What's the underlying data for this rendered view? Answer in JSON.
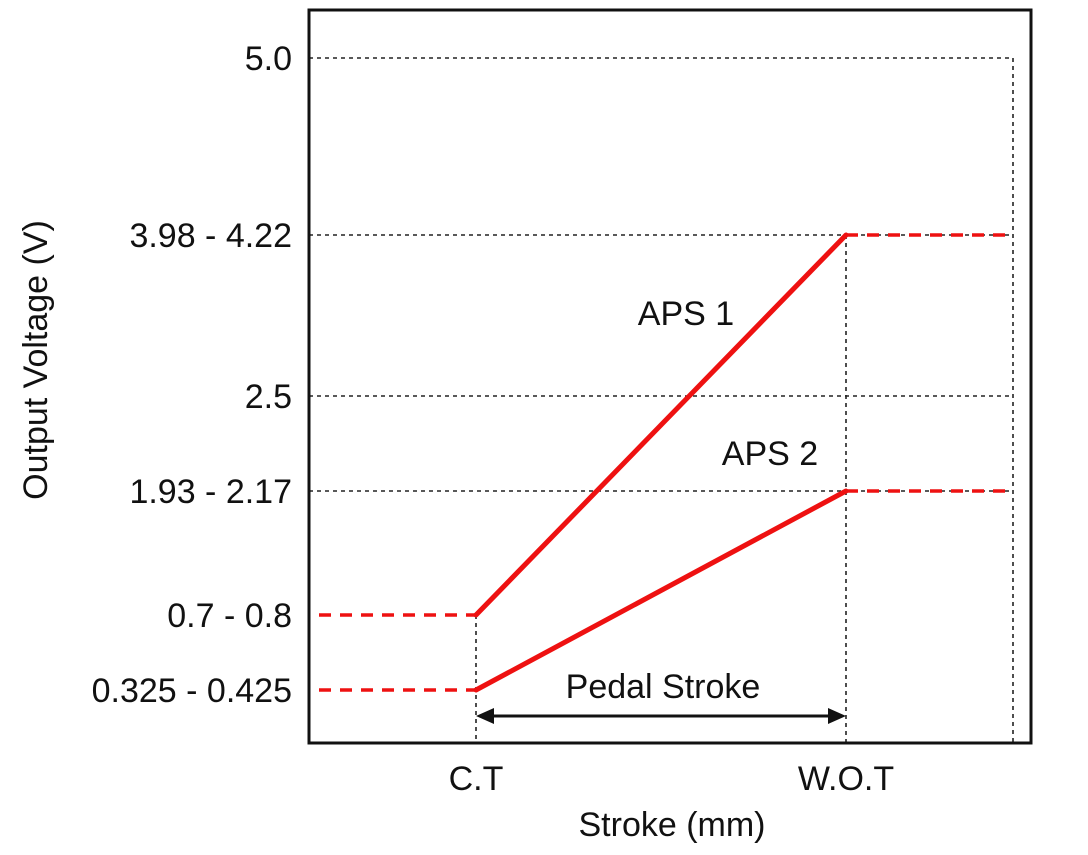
{
  "chart_data": {
    "type": "line",
    "title": "",
    "xlabel": "Stroke (mm)",
    "ylabel": "Output Voltage (V)",
    "y_ticks": [
      {
        "value": 0.375,
        "label": "0.325 - 0.425"
      },
      {
        "value": 0.75,
        "label": "0.7 - 0.8"
      },
      {
        "value": 2.05,
        "label": "1.93 - 2.17"
      },
      {
        "value": 2.5,
        "label": "2.5"
      },
      {
        "value": 4.1,
        "label": "3.98 - 4.22"
      },
      {
        "value": 5.0,
        "label": "5.0"
      }
    ],
    "x_ticks": [
      {
        "value": "C.T",
        "label": "C.T"
      },
      {
        "value": "W.O.T",
        "label": "W.O.T"
      }
    ],
    "series": [
      {
        "name": "APS 1",
        "points": [
          {
            "x": "C.T",
            "y": 0.75
          },
          {
            "x": "W.O.T",
            "y": 4.1
          }
        ],
        "flat_before": 0.75,
        "flat_after": 4.1
      },
      {
        "name": "APS 2",
        "points": [
          {
            "x": "C.T",
            "y": 0.375
          },
          {
            "x": "W.O.T",
            "y": 2.05
          }
        ],
        "flat_before": 0.375,
        "flat_after": 2.05
      }
    ],
    "annotations": [
      {
        "text": "Pedal Stroke",
        "from": "C.T",
        "to": "W.O.T"
      }
    ],
    "colors": {
      "series": "#ee1111",
      "axis": "#111111"
    },
    "grid": true,
    "legend": "none"
  }
}
